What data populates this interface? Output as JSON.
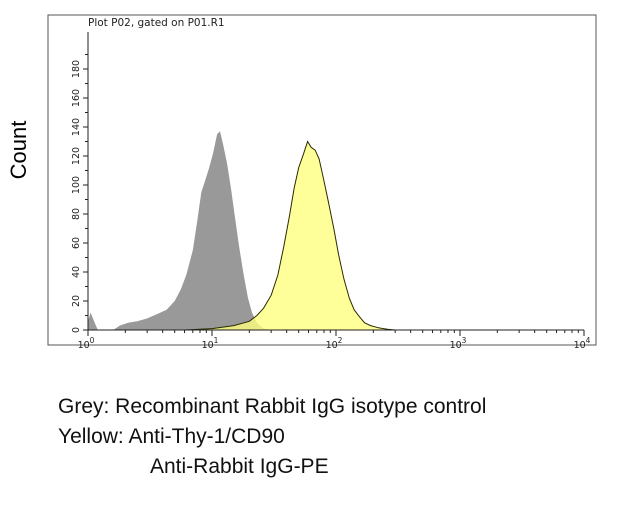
{
  "chart_data": {
    "type": "area",
    "title": "Plot P02, gated on P01.R1",
    "ylabel": "Count",
    "xlabel": "",
    "xscale": "log",
    "xlim": [
      1,
      10000
    ],
    "ylim": [
      0,
      200
    ],
    "x_ticks": [
      {
        "value": 1,
        "base": "10",
        "exp": "0"
      },
      {
        "value": 10,
        "base": "10",
        "exp": "1"
      },
      {
        "value": 100,
        "base": "10",
        "exp": "2"
      },
      {
        "value": 1000,
        "base": "10",
        "exp": "3"
      },
      {
        "value": 10000,
        "base": "10",
        "exp": "4"
      }
    ],
    "y_ticks": [
      "0",
      "20",
      "40",
      "60",
      "80",
      "100",
      "120",
      "140",
      "160",
      "180"
    ],
    "grid": false,
    "legend": "caption-below",
    "series": [
      {
        "key": "grey",
        "color": "#999999",
        "points": [
          [
            1.0,
            6
          ],
          [
            1.05,
            12
          ],
          [
            1.12,
            6
          ],
          [
            1.2,
            0
          ],
          [
            1.6,
            0
          ],
          [
            1.8,
            3
          ],
          [
            2.1,
            5
          ],
          [
            2.5,
            6
          ],
          [
            3.0,
            8
          ],
          [
            3.6,
            11
          ],
          [
            4.3,
            14
          ],
          [
            5.0,
            20
          ],
          [
            5.6,
            28
          ],
          [
            6.2,
            38
          ],
          [
            7.0,
            55
          ],
          [
            7.6,
            75
          ],
          [
            8.2,
            95
          ],
          [
            8.8,
            103
          ],
          [
            9.5,
            112
          ],
          [
            10.2,
            122
          ],
          [
            11.0,
            135
          ],
          [
            11.6,
            137
          ],
          [
            12.3,
            128
          ],
          [
            13.2,
            115
          ],
          [
            14.2,
            98
          ],
          [
            15.2,
            80
          ],
          [
            16.5,
            58
          ],
          [
            18.0,
            38
          ],
          [
            19.5,
            22
          ],
          [
            21.0,
            12
          ],
          [
            23.0,
            5
          ],
          [
            26.0,
            1
          ],
          [
            30.0,
            0
          ]
        ]
      },
      {
        "key": "yellow",
        "color": "#FFFF80",
        "points": [
          [
            6.0,
            0
          ],
          [
            10.0,
            1
          ],
          [
            15.0,
            3
          ],
          [
            20.0,
            6
          ],
          [
            23.0,
            10
          ],
          [
            26.0,
            15
          ],
          [
            30.0,
            24
          ],
          [
            34.0,
            38
          ],
          [
            38.0,
            58
          ],
          [
            42.0,
            78
          ],
          [
            46.0,
            98
          ],
          [
            50.0,
            112
          ],
          [
            55.0,
            122
          ],
          [
            59.0,
            130
          ],
          [
            63.0,
            126
          ],
          [
            68.0,
            124
          ],
          [
            73.0,
            118
          ],
          [
            79.0,
            105
          ],
          [
            87.0,
            88
          ],
          [
            96.0,
            70
          ],
          [
            105.0,
            52
          ],
          [
            116.0,
            35
          ],
          [
            128.0,
            22
          ],
          [
            140.0,
            14
          ],
          [
            155.0,
            9
          ],
          [
            170.0,
            5
          ],
          [
            190.0,
            3
          ],
          [
            220.0,
            1.5
          ],
          [
            260.0,
            0.5
          ],
          [
            300.0,
            0
          ]
        ]
      }
    ]
  },
  "caption": {
    "line1": "Grey: Recombinant Rabbit IgG isotype control",
    "line2": "Yellow: Anti-Thy-1/CD90",
    "line3": "Anti-Rabbit IgG-PE"
  }
}
